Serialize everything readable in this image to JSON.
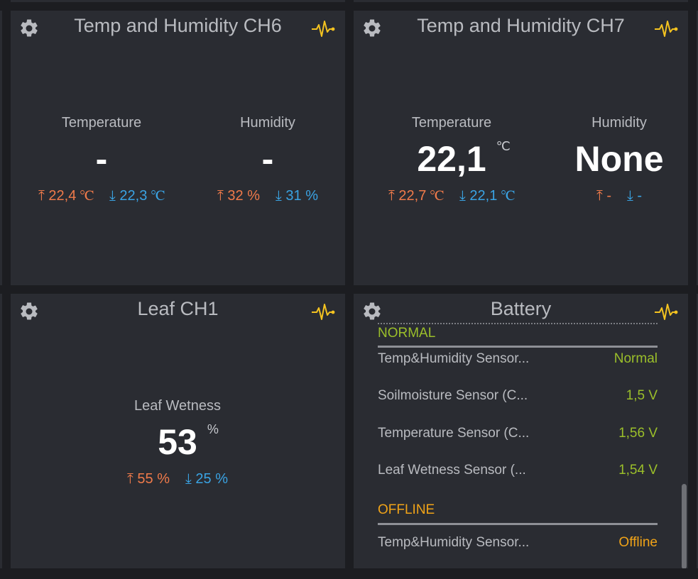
{
  "colors": {
    "background": "#1c1d21",
    "card": "#2a2c32",
    "title": "#b9bbc0",
    "value": "#ffffff",
    "high": "#ef7a4a",
    "low": "#3aa3e3",
    "normal": "#9bbf2a",
    "offline": "#f0a318",
    "pulse_icon": "#f4c320"
  },
  "icons": {
    "settings": "gear-icon",
    "activity": "pulse-icon",
    "up": "arrow-up-icon",
    "down": "arrow-down-icon"
  },
  "ch6": {
    "title": "Temp and Humidity CH6",
    "temperature": {
      "label": "Temperature",
      "value": "-",
      "max": "⤒ 22,4 ℃",
      "min": "⤓ 22,3 ℃"
    },
    "humidity": {
      "label": "Humidity",
      "value": "-",
      "max": "⤒ 32 %",
      "min": "⤓ 31 %"
    }
  },
  "ch7": {
    "title": "Temp and Humidity CH7",
    "temperature": {
      "label": "Temperature",
      "value": "22,1",
      "unit": "℃",
      "max": "⤒ 22,7 ℃",
      "min": "⤓ 22,1 ℃"
    },
    "humidity": {
      "label": "Humidity",
      "value": "None",
      "max": "⤒ -",
      "min": "⤓ -"
    }
  },
  "leaf": {
    "title": "Leaf CH1",
    "wetness": {
      "label": "Leaf Wetness",
      "value": "53",
      "unit": "%",
      "max": "⤒ 55 %",
      "min": "⤓ 25 %"
    }
  },
  "battery": {
    "title": "Battery",
    "groups": [
      {
        "heading": "NORMAL",
        "rows": [
          {
            "name": "Temp&Humidity Sensor...",
            "value": "Normal"
          },
          {
            "name": "Soilmoisture Sensor (C...",
            "value": "1,5 V"
          },
          {
            "name": "Temperature Sensor (C...",
            "value": "1,56 V"
          },
          {
            "name": "Leaf Wetness Sensor (...",
            "value": "1,54 V"
          }
        ]
      },
      {
        "heading": "OFFLINE",
        "rows": [
          {
            "name": "Temp&Humidity Sensor...",
            "value": "Offline"
          }
        ]
      }
    ]
  }
}
